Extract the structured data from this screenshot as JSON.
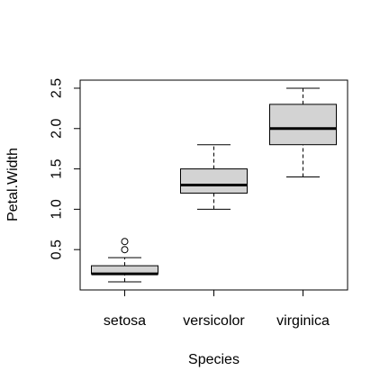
{
  "chart_data": {
    "type": "boxplot",
    "xlabel": "Species",
    "ylabel": "Petal.Width",
    "ylim": [
      0,
      2.6
    ],
    "yticks": [
      "0.5",
      "1.0",
      "1.5",
      "2.0",
      "2.5"
    ],
    "grid": false,
    "box_color": "#d3d3d3",
    "categories": [
      "setosa",
      "versicolor",
      "virginica"
    ],
    "boxes": [
      {
        "name": "setosa",
        "whisker_low": 0.1,
        "q1": 0.2,
        "median": 0.2,
        "q3": 0.3,
        "whisker_high": 0.4,
        "outliers": [
          0.5,
          0.6
        ]
      },
      {
        "name": "versicolor",
        "whisker_low": 1.0,
        "q1": 1.2,
        "median": 1.3,
        "q3": 1.5,
        "whisker_high": 1.8,
        "outliers": []
      },
      {
        "name": "virginica",
        "whisker_low": 1.4,
        "q1": 1.8,
        "median": 2.0,
        "q3": 2.3,
        "whisker_high": 2.5,
        "outliers": []
      }
    ]
  }
}
